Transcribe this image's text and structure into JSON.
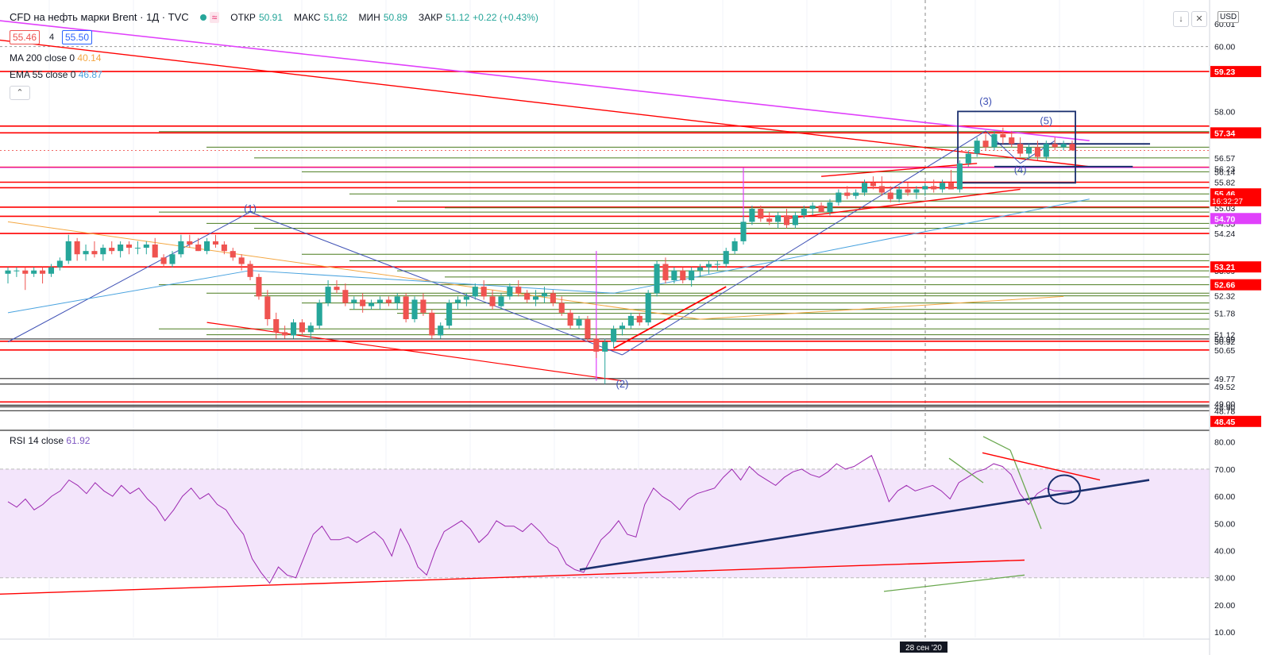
{
  "header": {
    "symbol": "CFD на нефть марки Brent · 1Д · TVC",
    "wave_icon": "≈",
    "open_label": "ОТКР",
    "open_value": "50.91",
    "high_label": "МАКС",
    "high_value": "51.62",
    "low_label": "МИН",
    "low_value": "50.89",
    "close_label": "ЗАКР",
    "close_value": "51.12",
    "change": "+0.22 (+0.43%)",
    "bid": "55.46",
    "qty": "4",
    "ask": "55.50",
    "currency": "USD"
  },
  "indicators": {
    "ma200": {
      "label": "MA 200 close 0",
      "value": "40.14",
      "color": "#f4a742"
    },
    "ema55": {
      "label": "EMA 55 close 0",
      "value": "46.87",
      "color": "#4aa3df"
    },
    "rsi": {
      "label": "RSI 14 close",
      "value": "61.92",
      "color": "#9c27b0"
    }
  },
  "colors": {
    "up": "#26a69a",
    "down": "#ef5350",
    "red_line": "#ff0000",
    "green_line": "#4a7c1f",
    "magenta": "#e040fb",
    "blue": "#3f51b5",
    "navy": "#1a2f6e",
    "rsi_band": "#f3e5fb"
  },
  "chart_data": {
    "type": "candlestick",
    "price_axis": {
      "min": 48.2,
      "max": 60.7,
      "ticks": [
        "60.00",
        "58.00",
        "57.38",
        "57.34",
        "56.57",
        "56.23",
        "56.14",
        "55.82",
        "55.46",
        "55.24",
        "55.03",
        "54.77",
        "54.70",
        "54.55",
        "54.24",
        "53.21",
        "53.09",
        "52.66",
        "52.32",
        "51.78",
        "51.12",
        "50.99",
        "50.92",
        "50.65",
        "49.77",
        "49.52",
        "49.00",
        "48.90",
        "48.78",
        "48.45"
      ],
      "top_label": "60.01",
      "red_labels": [
        "59.23",
        "57.34",
        "55.46",
        "54.70",
        "53.21",
        "52.66",
        "48.45"
      ],
      "countdown": "16:32:27"
    },
    "rsi_axis": {
      "min": 8,
      "max": 84,
      "ticks": [
        "80.00",
        "70.00",
        "60.00",
        "50.00",
        "40.00",
        "30.00",
        "20.00",
        "10.00"
      ],
      "band": [
        30,
        70
      ]
    },
    "candles": [
      [
        53.0,
        53.2,
        52.7,
        53.1
      ],
      [
        53.1,
        53.2,
        52.9,
        53.1
      ],
      [
        53.1,
        53.2,
        52.5,
        53.0
      ],
      [
        53.0,
        53.2,
        52.9,
        53.1
      ],
      [
        53.1,
        53.2,
        52.7,
        53.0
      ],
      [
        53.0,
        53.3,
        52.9,
        53.2
      ],
      [
        53.2,
        53.5,
        53.1,
        53.4
      ],
      [
        53.4,
        54.2,
        53.3,
        54.0
      ],
      [
        54.0,
        54.1,
        53.4,
        53.6
      ],
      [
        53.6,
        53.9,
        53.4,
        53.7
      ],
      [
        53.7,
        54.0,
        53.5,
        53.6
      ],
      [
        53.6,
        53.9,
        53.4,
        53.8
      ],
      [
        53.8,
        54.0,
        53.6,
        53.7
      ],
      [
        53.7,
        54.0,
        53.5,
        53.9
      ],
      [
        53.9,
        54.0,
        53.6,
        53.8
      ],
      [
        53.8,
        54.0,
        53.6,
        53.8
      ],
      [
        53.8,
        54.0,
        53.6,
        53.9
      ],
      [
        53.9,
        54.1,
        53.5,
        53.5
      ],
      [
        53.5,
        53.6,
        53.2,
        53.3
      ],
      [
        53.3,
        53.7,
        53.2,
        53.6
      ],
      [
        53.6,
        54.2,
        53.5,
        54.0
      ],
      [
        54.0,
        54.2,
        53.8,
        53.9
      ],
      [
        53.9,
        54.1,
        53.7,
        53.7
      ],
      [
        53.7,
        54.1,
        53.6,
        54.0
      ],
      [
        54.0,
        54.2,
        53.8,
        53.9
      ],
      [
        53.9,
        54.0,
        53.6,
        53.7
      ],
      [
        53.7,
        53.8,
        53.4,
        53.5
      ],
      [
        53.5,
        53.6,
        53.1,
        53.3
      ],
      [
        53.3,
        53.4,
        52.8,
        52.9
      ],
      [
        52.9,
        53.0,
        52.2,
        52.3
      ],
      [
        52.3,
        52.5,
        51.4,
        51.6
      ],
      [
        51.6,
        51.8,
        51.0,
        51.2
      ],
      [
        51.2,
        51.4,
        51.0,
        51.1
      ],
      [
        51.1,
        51.6,
        51.0,
        51.5
      ],
      [
        51.5,
        51.6,
        51.1,
        51.2
      ],
      [
        51.2,
        51.5,
        51.0,
        51.4
      ],
      [
        51.4,
        52.2,
        51.3,
        52.1
      ],
      [
        52.1,
        52.8,
        52.0,
        52.6
      ],
      [
        52.6,
        52.8,
        52.4,
        52.5
      ],
      [
        52.5,
        52.7,
        52.0,
        52.1
      ],
      [
        52.1,
        52.3,
        51.9,
        52.2
      ],
      [
        52.2,
        52.4,
        51.8,
        52.0
      ],
      [
        52.0,
        52.2,
        51.9,
        52.1
      ],
      [
        52.1,
        52.3,
        51.9,
        52.2
      ],
      [
        52.2,
        52.3,
        52.0,
        52.1
      ],
      [
        52.1,
        52.4,
        51.9,
        52.3
      ],
      [
        52.3,
        52.4,
        51.5,
        51.6
      ],
      [
        51.6,
        52.3,
        51.5,
        52.2
      ],
      [
        52.2,
        52.4,
        51.7,
        51.8
      ],
      [
        51.8,
        51.9,
        51.0,
        51.1
      ],
      [
        51.1,
        51.5,
        51.0,
        51.4
      ],
      [
        51.4,
        52.2,
        51.3,
        52.1
      ],
      [
        52.1,
        52.3,
        51.9,
        52.2
      ],
      [
        52.2,
        52.4,
        52.0,
        52.3
      ],
      [
        52.3,
        52.7,
        52.2,
        52.6
      ],
      [
        52.6,
        52.8,
        52.2,
        52.3
      ],
      [
        52.3,
        52.5,
        51.9,
        52.0
      ],
      [
        52.0,
        52.4,
        51.9,
        52.3
      ],
      [
        52.3,
        52.7,
        52.2,
        52.6
      ],
      [
        52.6,
        52.8,
        52.3,
        52.4
      ],
      [
        52.4,
        52.5,
        52.1,
        52.2
      ],
      [
        52.2,
        52.5,
        52.0,
        52.3
      ],
      [
        52.3,
        52.6,
        52.1,
        52.4
      ],
      [
        52.4,
        52.5,
        52.0,
        52.1
      ],
      [
        52.1,
        52.3,
        51.7,
        51.8
      ],
      [
        51.8,
        51.9,
        51.3,
        51.4
      ],
      [
        51.4,
        51.7,
        51.3,
        51.6
      ],
      [
        51.6,
        51.7,
        50.9,
        51.0
      ],
      [
        51.0,
        51.1,
        50.4,
        50.6
      ],
      [
        50.6,
        51.0,
        49.6,
        50.9
      ],
      [
        50.9,
        51.4,
        50.7,
        51.3
      ],
      [
        51.3,
        51.5,
        51.1,
        51.4
      ],
      [
        51.4,
        51.8,
        51.3,
        51.7
      ],
      [
        51.7,
        51.8,
        51.4,
        51.5
      ],
      [
        51.5,
        52.5,
        51.4,
        52.4
      ],
      [
        52.4,
        53.4,
        52.3,
        53.3
      ],
      [
        53.3,
        53.5,
        52.7,
        52.8
      ],
      [
        52.8,
        53.2,
        52.7,
        53.1
      ],
      [
        53.1,
        53.2,
        52.7,
        52.8
      ],
      [
        52.8,
        53.2,
        52.6,
        53.1
      ],
      [
        53.1,
        53.3,
        52.9,
        53.2
      ],
      [
        53.2,
        53.4,
        53.0,
        53.3
      ],
      [
        53.3,
        53.4,
        53.1,
        53.3
      ],
      [
        53.3,
        53.8,
        53.2,
        53.7
      ],
      [
        53.7,
        54.1,
        53.6,
        54.0
      ],
      [
        54.0,
        54.8,
        53.9,
        54.6
      ],
      [
        54.6,
        55.1,
        54.5,
        55.0
      ],
      [
        55.0,
        55.1,
        54.6,
        54.7
      ],
      [
        54.7,
        54.9,
        54.5,
        54.6
      ],
      [
        54.6,
        54.9,
        54.4,
        54.8
      ],
      [
        54.8,
        55.0,
        54.4,
        54.5
      ],
      [
        54.5,
        54.9,
        54.4,
        54.8
      ],
      [
        54.8,
        55.1,
        54.7,
        55.0
      ],
      [
        55.0,
        55.2,
        54.8,
        55.1
      ],
      [
        55.1,
        55.2,
        54.9,
        54.9
      ],
      [
        54.9,
        55.3,
        54.8,
        55.2
      ],
      [
        55.2,
        55.6,
        55.1,
        55.5
      ],
      [
        55.5,
        55.7,
        55.3,
        55.4
      ],
      [
        55.4,
        55.6,
        55.3,
        55.5
      ],
      [
        55.5,
        55.9,
        55.4,
        55.8
      ],
      [
        55.8,
        56.0,
        55.6,
        55.7
      ],
      [
        55.7,
        56.0,
        55.4,
        55.5
      ],
      [
        55.5,
        55.7,
        55.2,
        55.3
      ],
      [
        55.3,
        55.7,
        55.2,
        55.6
      ],
      [
        55.6,
        55.8,
        55.4,
        55.5
      ],
      [
        55.5,
        55.7,
        55.3,
        55.6
      ],
      [
        55.6,
        55.8,
        55.4,
        55.7
      ],
      [
        55.7,
        55.9,
        55.5,
        55.6
      ],
      [
        55.6,
        55.9,
        55.5,
        55.8
      ],
      [
        55.8,
        56.2,
        55.6,
        55.6
      ],
      [
        55.6,
        56.5,
        55.5,
        56.4
      ],
      [
        56.4,
        56.8,
        56.3,
        56.7
      ],
      [
        56.7,
        57.2,
        56.6,
        57.1
      ],
      [
        57.1,
        57.3,
        56.8,
        56.9
      ],
      [
        56.9,
        57.4,
        56.8,
        57.3
      ],
      [
        57.3,
        57.5,
        57.0,
        57.2
      ],
      [
        57.2,
        57.4,
        56.9,
        57.0
      ],
      [
        57.0,
        57.2,
        56.6,
        56.7
      ],
      [
        56.7,
        57.0,
        56.5,
        56.9
      ],
      [
        56.9,
        57.1,
        56.5,
        56.6
      ],
      [
        56.6,
        57.1,
        56.5,
        57.0
      ],
      [
        57.0,
        57.2,
        56.8,
        56.9
      ],
      [
        56.9,
        57.1,
        56.8,
        57.0
      ],
      [
        57.0,
        57.1,
        56.8,
        56.8
      ]
    ],
    "rsi": [
      58,
      56,
      59,
      55,
      57,
      60,
      62,
      66,
      64,
      61,
      65,
      62,
      60,
      64,
      61,
      63,
      59,
      56,
      51,
      55,
      60,
      63,
      59,
      61,
      57,
      55,
      50,
      46,
      37,
      32,
      28,
      34,
      31,
      30,
      38,
      46,
      49,
      44,
      44,
      45,
      43,
      45,
      47,
      44,
      38,
      48,
      42,
      34,
      31,
      40,
      47,
      49,
      51,
      48,
      43,
      46,
      51,
      49,
      49,
      47,
      50,
      47,
      43,
      41,
      35,
      33,
      32,
      38,
      44,
      47,
      51,
      46,
      45,
      57,
      63,
      60,
      58,
      55,
      59,
      61,
      62,
      63,
      67,
      70,
      66,
      71,
      68,
      66,
      64,
      67,
      69,
      70,
      68,
      67,
      69,
      72,
      70,
      71,
      73,
      75,
      67,
      58,
      62,
      64,
      62,
      63,
      64,
      62,
      59,
      65,
      67,
      69,
      70,
      72,
      71,
      68,
      61,
      57,
      61,
      63,
      62,
      62,
      62
    ],
    "wave_labels": [
      {
        "text": "(1)",
        "t": 28,
        "p": 54.9
      },
      {
        "text": "(2)",
        "t": 71,
        "p": 49.5
      },
      {
        "text": "(3)",
        "t": 113,
        "p": 58.2
      },
      {
        "text": "(4)",
        "t": 117,
        "p": 56.1
      },
      {
        "text": "(5)",
        "t": 120,
        "p": 57.6
      }
    ],
    "x_tick_labels": [
      "28 сен '20"
    ]
  }
}
